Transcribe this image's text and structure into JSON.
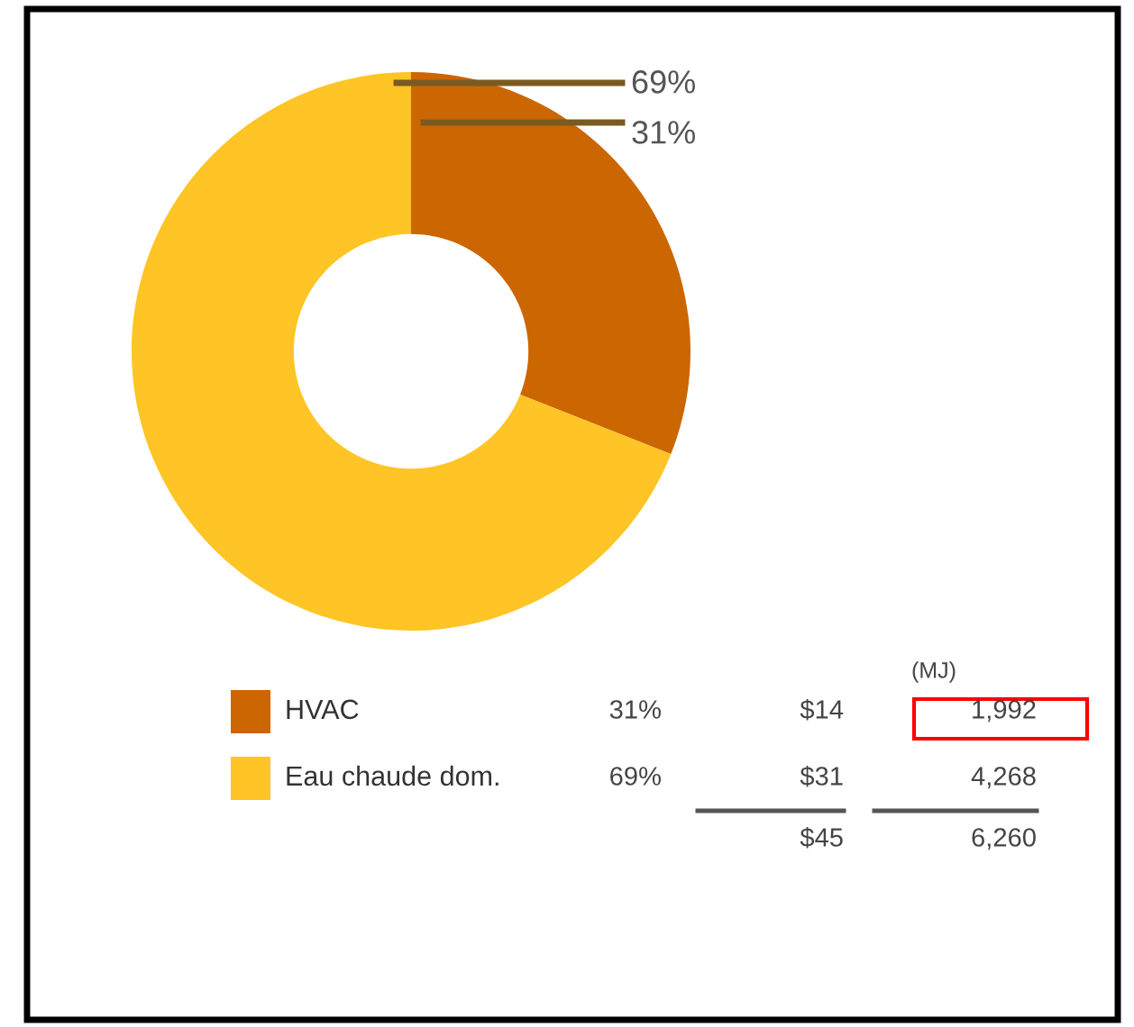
{
  "chart_data": {
    "type": "donut",
    "categories": [
      "HVAC",
      "Eau chaude dom."
    ],
    "values": [
      31,
      69
    ],
    "colors": [
      "#cc6600",
      "#ffc425"
    ],
    "value_labels": [
      "31%",
      "69%"
    ],
    "legend": "bottom",
    "annotations": [
      "(MJ)",
      "$14",
      "1,992",
      "$31",
      "4,268",
      "$45",
      "6,260"
    ]
  }
}
